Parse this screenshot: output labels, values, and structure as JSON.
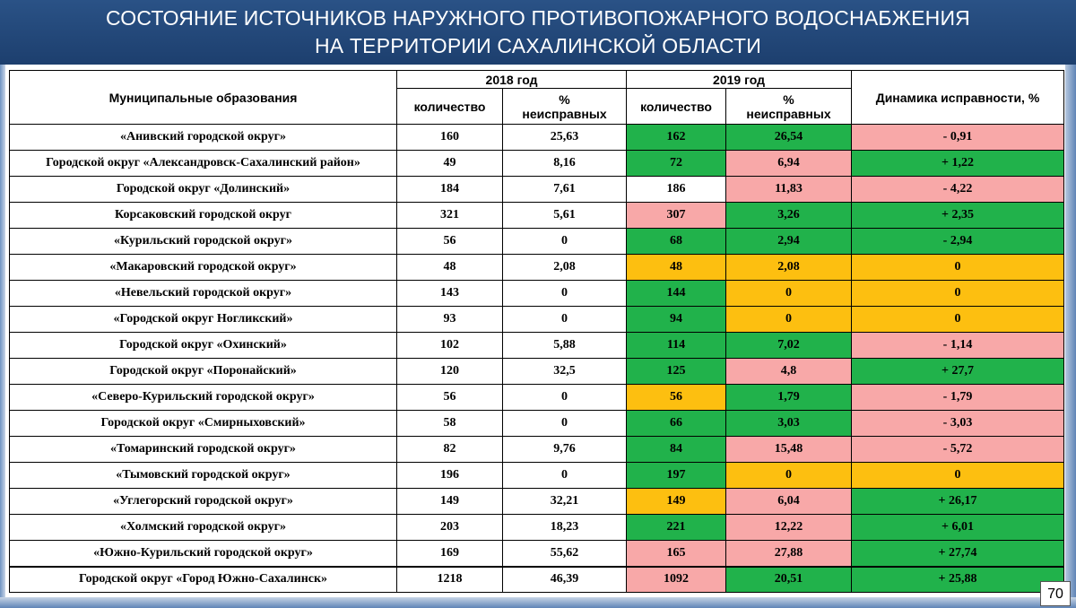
{
  "title": {
    "line1": "СОСТОЯНИЕ ИСТОЧНИКОВ НАРУЖНОГО ПРОТИВОПОЖАРНОГО ВОДОСНАБЖЕНИЯ",
    "line2": "НА ТЕРРИТОРИИ САХАЛИНСКОЙ ОБЛАСТИ"
  },
  "table": {
    "col_municipality": "Муниципальные образования",
    "year_2018": "2018 год",
    "year_2019": "2019 год",
    "col_dynamics": "Динамика исправности, %",
    "col_count": "количество",
    "col_percent_line1": "%",
    "col_percent_line2": "неисправных",
    "colors": {
      "green": "#21b24b",
      "pink": "#f8a8a8",
      "orange": "#fdbf10",
      "white": "#ffffff"
    },
    "rows": [
      {
        "name": "«Анивский городской округ»",
        "c2018": "160",
        "p2018": "25,63",
        "c2019": "162",
        "p2019": "26,54",
        "dyn": "- 0,91",
        "c2019_color": "green",
        "p2019_color": "green",
        "dyn_color": "pink"
      },
      {
        "name": "Городской округ «Александровск-Сахалинский район»",
        "c2018": "49",
        "p2018": "8,16",
        "c2019": "72",
        "p2019": "6,94",
        "dyn": "+ 1,22",
        "c2019_color": "green",
        "p2019_color": "pink",
        "dyn_color": "green"
      },
      {
        "name": "Городской округ «Долинский»",
        "c2018": "184",
        "p2018": "7,61",
        "c2019": "186",
        "p2019": "11,83",
        "dyn": "- 4,22",
        "c2019_color": "white",
        "p2019_color": "pink",
        "dyn_color": "pink"
      },
      {
        "name": "Корсаковский городской округ",
        "c2018": "321",
        "p2018": "5,61",
        "c2019": "307",
        "p2019": "3,26",
        "dyn": "+ 2,35",
        "c2019_color": "pink",
        "p2019_color": "green",
        "dyn_color": "green"
      },
      {
        "name": "«Курильский городской округ»",
        "c2018": "56",
        "p2018": "0",
        "c2019": "68",
        "p2019": "2,94",
        "dyn": "- 2,94",
        "c2019_color": "green",
        "p2019_color": "green",
        "dyn_color": "green"
      },
      {
        "name": "«Макаровский городской округ»",
        "c2018": "48",
        "p2018": "2,08",
        "c2019": "48",
        "p2019": "2,08",
        "dyn": "0",
        "c2019_color": "orange",
        "p2019_color": "orange",
        "dyn_color": "orange"
      },
      {
        "name": "«Невельский городской округ»",
        "c2018": "143",
        "p2018": "0",
        "c2019": "144",
        "p2019": "0",
        "dyn": "0",
        "c2019_color": "green",
        "p2019_color": "orange",
        "dyn_color": "orange"
      },
      {
        "name": "«Городской округ Ногликский»",
        "c2018": "93",
        "p2018": "0",
        "c2019": "94",
        "p2019": "0",
        "dyn": "0",
        "c2019_color": "green",
        "p2019_color": "orange",
        "dyn_color": "orange"
      },
      {
        "name": "Городской округ «Охинский»",
        "c2018": "102",
        "p2018": "5,88",
        "c2019": "114",
        "p2019": "7,02",
        "dyn": "- 1,14",
        "c2019_color": "green",
        "p2019_color": "green",
        "dyn_color": "pink"
      },
      {
        "name": "Городской округ «Поронайский»",
        "c2018": "120",
        "p2018": "32,5",
        "c2019": "125",
        "p2019": "4,8",
        "dyn": "+ 27,7",
        "c2019_color": "green",
        "p2019_color": "pink",
        "dyn_color": "green"
      },
      {
        "name": "«Северо-Курильский городской округ»",
        "c2018": "56",
        "p2018": "0",
        "c2019": "56",
        "p2019": "1,79",
        "dyn": "- 1,79",
        "c2019_color": "orange",
        "p2019_color": "green",
        "dyn_color": "pink"
      },
      {
        "name": "Городской округ «Смирныховский»",
        "c2018": "58",
        "p2018": "0",
        "c2019": "66",
        "p2019": "3,03",
        "dyn": "- 3,03",
        "c2019_color": "green",
        "p2019_color": "green",
        "dyn_color": "pink"
      },
      {
        "name": "«Томаринский городской округ»",
        "c2018": "82",
        "p2018": "9,76",
        "c2019": "84",
        "p2019": "15,48",
        "dyn": "- 5,72",
        "c2019_color": "green",
        "p2019_color": "pink",
        "dyn_color": "pink"
      },
      {
        "name": "«Тымовский городской округ»",
        "c2018": "196",
        "p2018": "0",
        "c2019": "197",
        "p2019": "0",
        "dyn": "0",
        "c2019_color": "green",
        "p2019_color": "orange",
        "dyn_color": "orange"
      },
      {
        "name": "«Углегорский городской округ»",
        "c2018": "149",
        "p2018": "32,21",
        "c2019": "149",
        "p2019": "6,04",
        "dyn": "+ 26,17",
        "c2019_color": "orange",
        "p2019_color": "pink",
        "dyn_color": "green"
      },
      {
        "name": "«Холмский городской округ»",
        "c2018": "203",
        "p2018": "18,23",
        "c2019": "221",
        "p2019": "12,22",
        "dyn": "+ 6,01",
        "c2019_color": "green",
        "p2019_color": "pink",
        "dyn_color": "green"
      },
      {
        "name": "«Южно-Курильский городской округ»",
        "c2018": "169",
        "p2018": "55,62",
        "c2019": "165",
        "p2019": "27,88",
        "dyn": "+ 27,74",
        "c2019_color": "pink",
        "p2019_color": "pink",
        "dyn_color": "green"
      },
      {
        "name": "Городской округ «Город Южно-Сахалинск»",
        "c2018": "1218",
        "p2018": "46,39",
        "c2019": "1092",
        "p2019": "20,51",
        "dyn": "+ 25,88",
        "c2019_color": "pink",
        "p2019_color": "green",
        "dyn_color": "green"
      }
    ]
  },
  "page_number": "70"
}
